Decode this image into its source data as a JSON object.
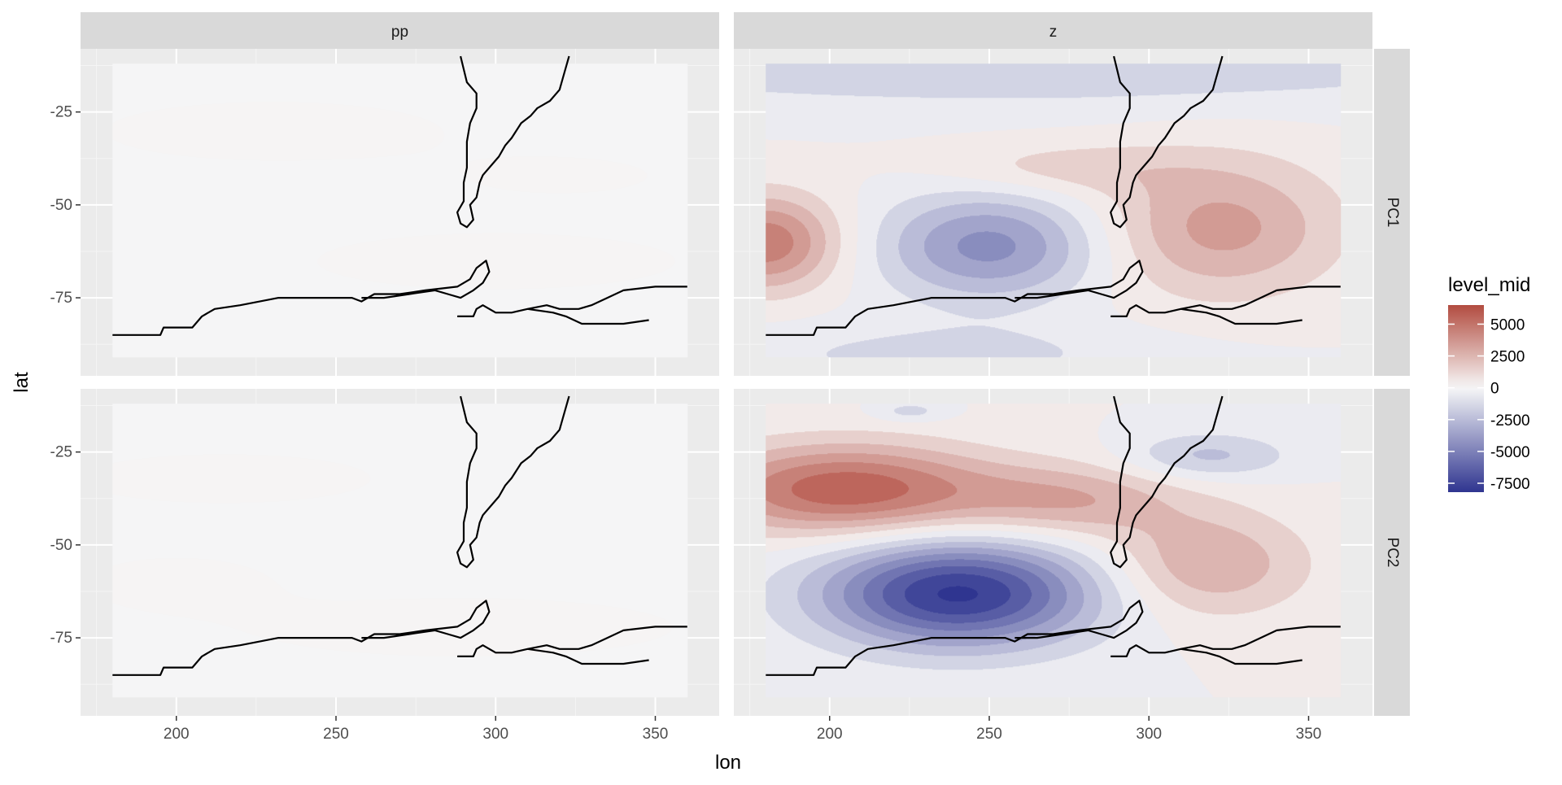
{
  "chart_data": {
    "type": "contour",
    "xlabel": "lon",
    "ylabel": "lat",
    "xlim": [
      170,
      370
    ],
    "ylim": [
      -96,
      -8
    ],
    "x_ticks": [
      200,
      250,
      300,
      350
    ],
    "y_ticks": [
      -25,
      -50,
      -75
    ],
    "x_tick_labels": [
      "200",
      "250",
      "300",
      "350"
    ],
    "y_tick_labels": [
      "-25",
      "-50",
      "-75"
    ],
    "data_extent": {
      "lon": [
        180,
        360
      ],
      "lat": [
        -91,
        -12
      ]
    },
    "facet_columns": [
      "pp",
      "z"
    ],
    "facet_rows": [
      "PC1",
      "PC2"
    ],
    "legend": {
      "title": "level_mid",
      "position": "right",
      "min": -8200,
      "max": 6500,
      "labels": [
        {
          "value": 5000,
          "text": "5000"
        },
        {
          "value": 2500,
          "text": "2500"
        },
        {
          "value": 0,
          "text": "0"
        },
        {
          "value": -2500,
          "text": "-2500"
        },
        {
          "value": -5000,
          "text": "-5000"
        },
        {
          "value": -7500,
          "text": "-7500"
        }
      ],
      "colors": {
        "low": "#2f3590",
        "mid": "#f7f7f7",
        "high": "#b24c40"
      }
    },
    "panels": [
      {
        "col": "pp",
        "row": "PC1",
        "background_level": -60,
        "features": [
          {
            "lon": 230,
            "lat": -30,
            "sx": 40,
            "sy": 6,
            "amp": 140
          },
          {
            "lon": 300,
            "lat": -65,
            "sx": 45,
            "sy": 6,
            "amp": 130
          },
          {
            "lon": 320,
            "lat": -42,
            "sx": 30,
            "sy": 5,
            "amp": 90
          }
        ]
      },
      {
        "col": "z",
        "row": "PC1",
        "background_level": 0,
        "features": [
          {
            "lon": 180,
            "lat": -60,
            "sx": 16,
            "sy": 9,
            "amp": 4800
          },
          {
            "lon": 250,
            "lat": -61,
            "sx": 24,
            "sy": 10,
            "amp": -4400
          },
          {
            "lon": 322,
            "lat": -56,
            "sx": 26,
            "sy": 13,
            "amp": 3400
          },
          {
            "lon": 272,
            "lat": -40,
            "sx": 28,
            "sy": 5,
            "amp": 1500
          },
          {
            "lon": 260,
            "lat": -14,
            "sx": 120,
            "sy": 7,
            "amp": -1700
          },
          {
            "lon": 235,
            "lat": -90,
            "sx": 50,
            "sy": 6,
            "amp": -1300
          }
        ]
      },
      {
        "col": "pp",
        "row": "PC2",
        "background_level": -60,
        "features": [
          {
            "lon": 215,
            "lat": -32,
            "sx": 35,
            "sy": 5,
            "amp": 140
          },
          {
            "lon": 290,
            "lat": -72,
            "sx": 50,
            "sy": 6,
            "amp": 140
          },
          {
            "lon": 200,
            "lat": -60,
            "sx": 25,
            "sy": 6,
            "amp": 110
          }
        ]
      },
      {
        "col": "z",
        "row": "PC2",
        "background_level": 0,
        "features": [
          {
            "lon": 205,
            "lat": -35,
            "sx": 32,
            "sy": 8.5,
            "amp": 5800
          },
          {
            "lon": 240,
            "lat": -63,
            "sx": 30,
            "sy": 10,
            "amp": -8200
          },
          {
            "lon": 275,
            "lat": -38,
            "sx": 25,
            "sy": 7,
            "amp": 2800
          },
          {
            "lon": 318,
            "lat": -55,
            "sx": 22,
            "sy": 10,
            "amp": 3000
          },
          {
            "lon": 318,
            "lat": -26,
            "sx": 18,
            "sy": 4.5,
            "amp": -2300
          },
          {
            "lon": 225,
            "lat": -14,
            "sx": 8,
            "sy": 2,
            "amp": -1500
          }
        ]
      }
    ],
    "coastlines": [
      {
        "name": "south-america",
        "points": [
          [
            289,
            -10
          ],
          [
            291,
            -17
          ],
          [
            294,
            -20
          ],
          [
            294,
            -24
          ],
          [
            292,
            -28
          ],
          [
            291,
            -33
          ],
          [
            291,
            -40
          ],
          [
            290,
            -44
          ],
          [
            290,
            -49
          ],
          [
            288,
            -52
          ],
          [
            289,
            -55
          ],
          [
            291,
            -56
          ],
          [
            293,
            -54
          ],
          [
            292,
            -50
          ],
          [
            294,
            -48
          ],
          [
            295,
            -44
          ],
          [
            296,
            -42
          ],
          [
            299,
            -39
          ],
          [
            301,
            -37
          ],
          [
            303,
            -34
          ],
          [
            305,
            -32
          ],
          [
            308,
            -28
          ],
          [
            311,
            -26
          ],
          [
            313,
            -24
          ],
          [
            317,
            -22
          ],
          [
            320,
            -19
          ],
          [
            321,
            -16
          ],
          [
            323,
            -10
          ]
        ]
      },
      {
        "name": "antarctica-west",
        "points": [
          [
            180,
            -85
          ],
          [
            195,
            -85
          ],
          [
            196,
            -83
          ],
          [
            205,
            -83
          ],
          [
            208,
            -80
          ],
          [
            212,
            -78
          ],
          [
            220,
            -77
          ],
          [
            232,
            -75
          ],
          [
            246,
            -75
          ],
          [
            255,
            -75
          ],
          [
            258,
            -76
          ],
          [
            262,
            -74
          ],
          [
            270,
            -74
          ],
          [
            278,
            -73
          ],
          [
            288,
            -72
          ],
          [
            292,
            -70
          ],
          [
            294,
            -67
          ],
          [
            297,
            -65
          ],
          [
            298,
            -68
          ],
          [
            296,
            -71
          ],
          [
            293,
            -73
          ],
          [
            289,
            -75
          ],
          [
            285,
            -74
          ],
          [
            281,
            -73
          ],
          [
            273,
            -74
          ],
          [
            265,
            -75
          ],
          [
            258,
            -75
          ]
        ]
      },
      {
        "name": "antarctica-peninsula",
        "points": [
          [
            288,
            -80
          ],
          [
            293,
            -80
          ],
          [
            294,
            -78
          ],
          [
            296,
            -77
          ],
          [
            300,
            -79
          ],
          [
            305,
            -79
          ],
          [
            310,
            -78
          ],
          [
            316,
            -77
          ],
          [
            320,
            -78
          ],
          [
            326,
            -78
          ],
          [
            330,
            -77
          ],
          [
            335,
            -75
          ],
          [
            340,
            -73
          ],
          [
            350,
            -72
          ],
          [
            360,
            -72
          ]
        ]
      },
      {
        "name": "weddell-coast",
        "points": [
          [
            310,
            -78
          ],
          [
            318,
            -79
          ],
          [
            322,
            -80
          ],
          [
            327,
            -82
          ],
          [
            340,
            -82
          ],
          [
            348,
            -81
          ]
        ]
      }
    ]
  }
}
